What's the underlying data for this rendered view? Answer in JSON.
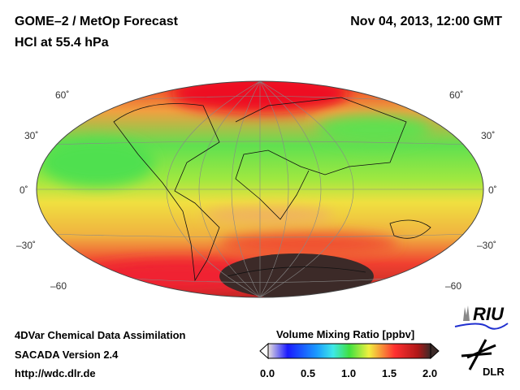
{
  "header": {
    "title": "GOME–2 / MetOp Forecast",
    "subtitle": "HCl at 55.4 hPa",
    "datetime": "Nov 04, 2013, 12:00 GMT"
  },
  "map": {
    "projection": "Hammer (global)",
    "lat_labels_left": [
      "60˚",
      "30˚",
      "0˚",
      "–30˚",
      "–60"
    ],
    "lat_labels_right": [
      "60˚",
      "30˚",
      "0˚",
      "–30˚",
      "–60"
    ]
  },
  "footer": {
    "line1": "4DVar Chemical Data Assimilation",
    "line2": "SACADA Version 2.4",
    "line3": "http://wdc.dlr.de"
  },
  "colorbar": {
    "title": "Volume Mixing Ratio [ppbv]",
    "min": 0.0,
    "max": 2.0,
    "ticks": [
      "0.0",
      "0.5",
      "1.0",
      "1.5",
      "2.0"
    ],
    "colors": [
      "#e8e0dc",
      "#1a1aff",
      "#1a9bff",
      "#3ee8e8",
      "#40e040",
      "#f0f040",
      "#ff3030",
      "#b01818",
      "#3c2a28"
    ]
  },
  "logos": {
    "riu": "RIU",
    "dlr": "DLR"
  }
}
